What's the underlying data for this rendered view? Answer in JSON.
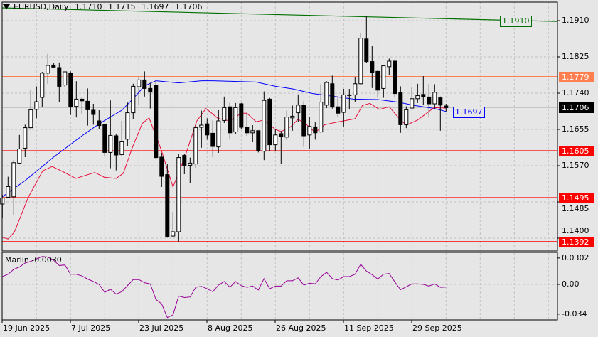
{
  "header": {
    "symbol_timeframe": "EURUSD,Daily",
    "open": "1.1710",
    "high": "1.1715",
    "low": "1.1697",
    "close": "1.1706"
  },
  "indicator": {
    "label": "Marlin -0.0030",
    "axis_ticks": [
      "0.0302",
      "0.00",
      "-0.034"
    ],
    "tick_values": [
      0.0302,
      0,
      -0.034
    ],
    "color": "#990099",
    "values": [
      0.0089,
      0.0116,
      0.0172,
      0.0199,
      0.0244,
      0.0263,
      0.0291,
      0.0319,
      0.0313,
      0.0277,
      0.0216,
      0.0222,
      0.0116,
      0.0116,
      0.0097,
      0.0061,
      0.0033,
      0.0,
      -0.0091,
      -0.0055,
      -0.0111,
      -0.0083,
      -0.0014,
      0.0055,
      0.0055,
      0.0019,
      0.0006,
      -0.0172,
      -0.0222,
      -0.038,
      -0.0349,
      -0.0133,
      -0.015,
      -0.0144,
      -0.0033,
      -0.0022,
      -0.005,
      -0.0083,
      -0.0008,
      0.0033,
      -0.0033,
      0.0033,
      -0.0014,
      -0.0033,
      -0.0019,
      -0.0064,
      0.0066,
      -0.005,
      -0.0019,
      -0.0019,
      0.0042,
      0.0042,
      0.0075,
      -0.0008,
      0.0014,
      0.0006,
      0.0089,
      0.0139,
      0.0066,
      0.005,
      0.0089,
      0.0089,
      0.0116,
      0.023,
      0.0152,
      0.0111,
      0.0061,
      0.0116,
      0.0125,
      0.0028,
      -0.0061,
      -0.0028,
      0.0006,
      0.0006,
      0.0,
      -0.0019,
      0.0006,
      -0.0033,
      -0.003
    ]
  },
  "price_axis": {
    "ticks": [
      "1.1910",
      "1.1825",
      "1.1740",
      "1.1655",
      "1.1570",
      "1.1485",
      "1.1400"
    ],
    "tick_values": [
      1.191,
      1.1825,
      1.174,
      1.1655,
      1.157,
      1.1485,
      1.14
    ]
  },
  "levels": [
    {
      "label": "1.1779",
      "value": 1.1779,
      "color": "#ff7f50"
    },
    {
      "label": "1.1605",
      "value": 1.1605,
      "color": "#ff0000"
    },
    {
      "label": "1.1495",
      "value": 1.1495,
      "color": "#ff0000"
    },
    {
      "label": "1.1392",
      "value": 1.1392,
      "color": "#ff0000"
    }
  ],
  "current_price": {
    "label": "1.1706",
    "value": 1.1706,
    "color": "#000000"
  },
  "trendline": {
    "label": "1.1910",
    "color": "#007000",
    "start": [
      0.96,
      1.194
    ],
    "end": [
      98.7,
      1.1908
    ],
    "tag_value": 1.191
  },
  "ma_blue": {
    "label": "1.1697",
    "color": "#0000ff",
    "value": 1.1697,
    "points": [
      [
        1,
        1.1497
      ],
      [
        5,
        1.1535
      ],
      [
        10,
        1.159
      ],
      [
        15,
        1.164
      ],
      [
        18,
        1.1668
      ],
      [
        22,
        1.17
      ],
      [
        24,
        1.1727
      ],
      [
        26,
        1.1757
      ],
      [
        28,
        1.1769
      ],
      [
        32,
        1.1764
      ],
      [
        36,
        1.1769
      ],
      [
        38,
        1.1769
      ],
      [
        45.6,
        1.1766
      ],
      [
        49,
        1.1756
      ],
      [
        52,
        1.175
      ],
      [
        55.6,
        1.1739
      ],
      [
        59,
        1.1733
      ],
      [
        62.7,
        1.1726
      ],
      [
        67,
        1.1725
      ],
      [
        70.6,
        1.1719
      ],
      [
        73.5,
        1.1711
      ],
      [
        77,
        1.1704
      ],
      [
        79,
        1.1697
      ]
    ]
  },
  "ma_red": {
    "color": "#e8103c",
    "points": [
      [
        1,
        1.1402
      ],
      [
        2,
        1.1398
      ],
      [
        3.1,
        1.1414
      ],
      [
        5.6,
        1.1497
      ],
      [
        8.1,
        1.1558
      ],
      [
        9.75,
        1.1568
      ],
      [
        11.8,
        1.1555
      ],
      [
        13.9,
        1.154
      ],
      [
        17.25,
        1.1554
      ],
      [
        18.9,
        1.1543
      ],
      [
        21,
        1.154
      ],
      [
        22.25,
        1.1552
      ],
      [
        23.9,
        1.1614
      ],
      [
        25.6,
        1.1669
      ],
      [
        26.8,
        1.1682
      ],
      [
        28.9,
        1.1608
      ],
      [
        31,
        1.152
      ],
      [
        33.1,
        1.1591
      ],
      [
        35.2,
        1.1675
      ],
      [
        36.8,
        1.1704
      ],
      [
        38.9,
        1.1681
      ],
      [
        40.2,
        1.1677
      ],
      [
        41,
        1.1675
      ],
      [
        43,
        1.1693
      ],
      [
        44,
        1.1693
      ],
      [
        45.6,
        1.1673
      ],
      [
        47,
        1.1677
      ],
      [
        49,
        1.1655
      ],
      [
        50,
        1.165
      ],
      [
        51.7,
        1.1661
      ],
      [
        53,
        1.1679
      ],
      [
        54.6,
        1.1665
      ],
      [
        56,
        1.1648
      ],
      [
        57.7,
        1.1666
      ],
      [
        59.8,
        1.1672
      ],
      [
        63,
        1.168
      ],
      [
        64.3,
        1.1711
      ],
      [
        65.6,
        1.1716
      ],
      [
        67.3,
        1.1702
      ],
      [
        69,
        1.1708
      ],
      [
        70.6,
        1.1683
      ],
      [
        72,
        1.1665
      ],
      [
        74,
        1.1677
      ],
      [
        76.9,
        1.1706
      ],
      [
        79,
        1.1705
      ]
    ]
  },
  "candles": [
    [
      1.148,
      1.1502,
      1.1447,
      1.1494
    ],
    [
      1.1496,
      1.1544,
      1.1494,
      1.1521
    ],
    [
      1.1497,
      1.1583,
      1.1454,
      1.1577
    ],
    [
      1.1576,
      1.1642,
      1.1576,
      1.1609
    ],
    [
      1.1611,
      1.1666,
      1.159,
      1.1659
    ],
    [
      1.1659,
      1.1747,
      1.1654,
      1.1701
    ],
    [
      1.1702,
      1.1756,
      1.1681,
      1.172
    ],
    [
      1.173,
      1.179,
      1.1708,
      1.1787
    ],
    [
      1.1787,
      1.1832,
      1.1762,
      1.1805
    ],
    [
      1.1806,
      1.1811,
      1.1801,
      1.1801
    ],
    [
      1.18,
      1.1812,
      1.1719,
      1.1756
    ],
    [
      1.1759,
      1.179,
      1.1754,
      1.179
    ],
    [
      1.1786,
      1.1791,
      1.1689,
      1.1709
    ],
    [
      1.1709,
      1.1768,
      1.1683,
      1.1726
    ],
    [
      1.1726,
      1.1731,
      1.169,
      1.1722
    ],
    [
      1.1721,
      1.1751,
      1.1664,
      1.1701
    ],
    [
      1.17,
      1.1715,
      1.1666,
      1.169
    ],
    [
      1.1675,
      1.17,
      1.1655,
      1.1664
    ],
    [
      1.1666,
      1.1666,
      1.1592,
      1.1601
    ],
    [
      1.1601,
      1.1723,
      1.1564,
      1.1641
    ],
    [
      1.164,
      1.1645,
      1.1559,
      1.1595
    ],
    [
      1.1596,
      1.1675,
      1.1592,
      1.1626
    ],
    [
      1.1632,
      1.1718,
      1.1615,
      1.1694
    ],
    [
      1.1694,
      1.1762,
      1.168,
      1.1756
    ],
    [
      1.1755,
      1.1777,
      1.1712,
      1.1771
    ],
    [
      1.1771,
      1.1791,
      1.1732,
      1.1751
    ],
    [
      1.1751,
      1.1764,
      1.1704,
      1.1744
    ],
    [
      1.1758,
      1.1772,
      1.1586,
      1.1589
    ],
    [
      1.159,
      1.16,
      1.152,
      1.1545
    ],
    [
      1.1549,
      1.1575,
      1.1401,
      1.1404
    ],
    [
      1.1405,
      1.1461,
      1.1402,
      1.1415
    ],
    [
      1.1415,
      1.1598,
      1.1392,
      1.1589
    ],
    [
      1.1594,
      1.1598,
      1.155,
      1.1571
    ],
    [
      1.1571,
      1.1589,
      1.1529,
      1.1576
    ],
    [
      1.1574,
      1.1669,
      1.1565,
      1.1659
    ],
    [
      1.166,
      1.1699,
      1.1612,
      1.1665
    ],
    [
      1.1668,
      1.1681,
      1.1631,
      1.1642
    ],
    [
      1.1646,
      1.1676,
      1.159,
      1.1615
    ],
    [
      1.1614,
      1.17,
      1.16,
      1.1675
    ],
    [
      1.1676,
      1.1732,
      1.167,
      1.1706
    ],
    [
      1.1708,
      1.1717,
      1.1631,
      1.1647
    ],
    [
      1.1649,
      1.1717,
      1.1645,
      1.1706
    ],
    [
      1.1715,
      1.1717,
      1.1655,
      1.166
    ],
    [
      1.166,
      1.1694,
      1.164,
      1.1647
    ],
    [
      1.1647,
      1.1665,
      1.1625,
      1.1652
    ],
    [
      1.1652,
      1.1652,
      1.1601,
      1.1605
    ],
    [
      1.1604,
      1.1744,
      1.1583,
      1.1723
    ],
    [
      1.1726,
      1.1729,
      1.1604,
      1.1619
    ],
    [
      1.1619,
      1.1655,
      1.1604,
      1.1642
    ],
    [
      1.1645,
      1.1651,
      1.1575,
      1.1639
    ],
    [
      1.1637,
      1.1699,
      1.163,
      1.1684
    ],
    [
      1.1682,
      1.1711,
      1.1652,
      1.1686
    ],
    [
      1.1694,
      1.1737,
      1.1673,
      1.1712
    ],
    [
      1.1711,
      1.1721,
      1.1614,
      1.164
    ],
    [
      1.1642,
      1.1684,
      1.1609,
      1.1662
    ],
    [
      1.1661,
      1.1672,
      1.1631,
      1.1647
    ],
    [
      1.1649,
      1.1761,
      1.1647,
      1.1719
    ],
    [
      1.1712,
      1.1768,
      1.1705,
      1.1765
    ],
    [
      1.1762,
      1.1781,
      1.1704,
      1.1709
    ],
    [
      1.1708,
      1.1733,
      1.1683,
      1.1693
    ],
    [
      1.1695,
      1.175,
      1.1662,
      1.1736
    ],
    [
      1.1736,
      1.175,
      1.1702,
      1.1735
    ],
    [
      1.1736,
      1.1777,
      1.1719,
      1.1762
    ],
    [
      1.1762,
      1.1881,
      1.1759,
      1.1869
    ],
    [
      1.1867,
      1.1921,
      1.1811,
      1.1814
    ],
    [
      1.1814,
      1.1851,
      1.1752,
      1.1789
    ],
    [
      1.1791,
      1.1795,
      1.173,
      1.1747
    ],
    [
      1.1751,
      1.1804,
      1.1729,
      1.1804
    ],
    [
      1.1802,
      1.1821,
      1.1782,
      1.1815
    ],
    [
      1.1815,
      1.1819,
      1.173,
      1.1739
    ],
    [
      1.1741,
      1.1756,
      1.1647,
      1.1666
    ],
    [
      1.1666,
      1.1709,
      1.1658,
      1.1701
    ],
    [
      1.1705,
      1.1755,
      1.1704,
      1.1727
    ],
    [
      1.1727,
      1.1762,
      1.1717,
      1.1734
    ],
    [
      1.1737,
      1.178,
      1.1712,
      1.1732
    ],
    [
      1.1731,
      1.1761,
      1.1683,
      1.1715
    ],
    [
      1.1715,
      1.1761,
      1.1704,
      1.1742
    ],
    [
      1.1729,
      1.1732,
      1.1652,
      1.1712
    ],
    [
      1.171,
      1.1715,
      1.1697,
      1.1706
    ]
  ],
  "date_axis": {
    "labels": [
      "19 Jun 2025",
      "7 Jul 2025",
      "23 Jul 2025",
      "8 Aug 2025",
      "26 Aug 2025",
      "11 Sep 2025",
      "29 Sep 2025"
    ]
  }
}
